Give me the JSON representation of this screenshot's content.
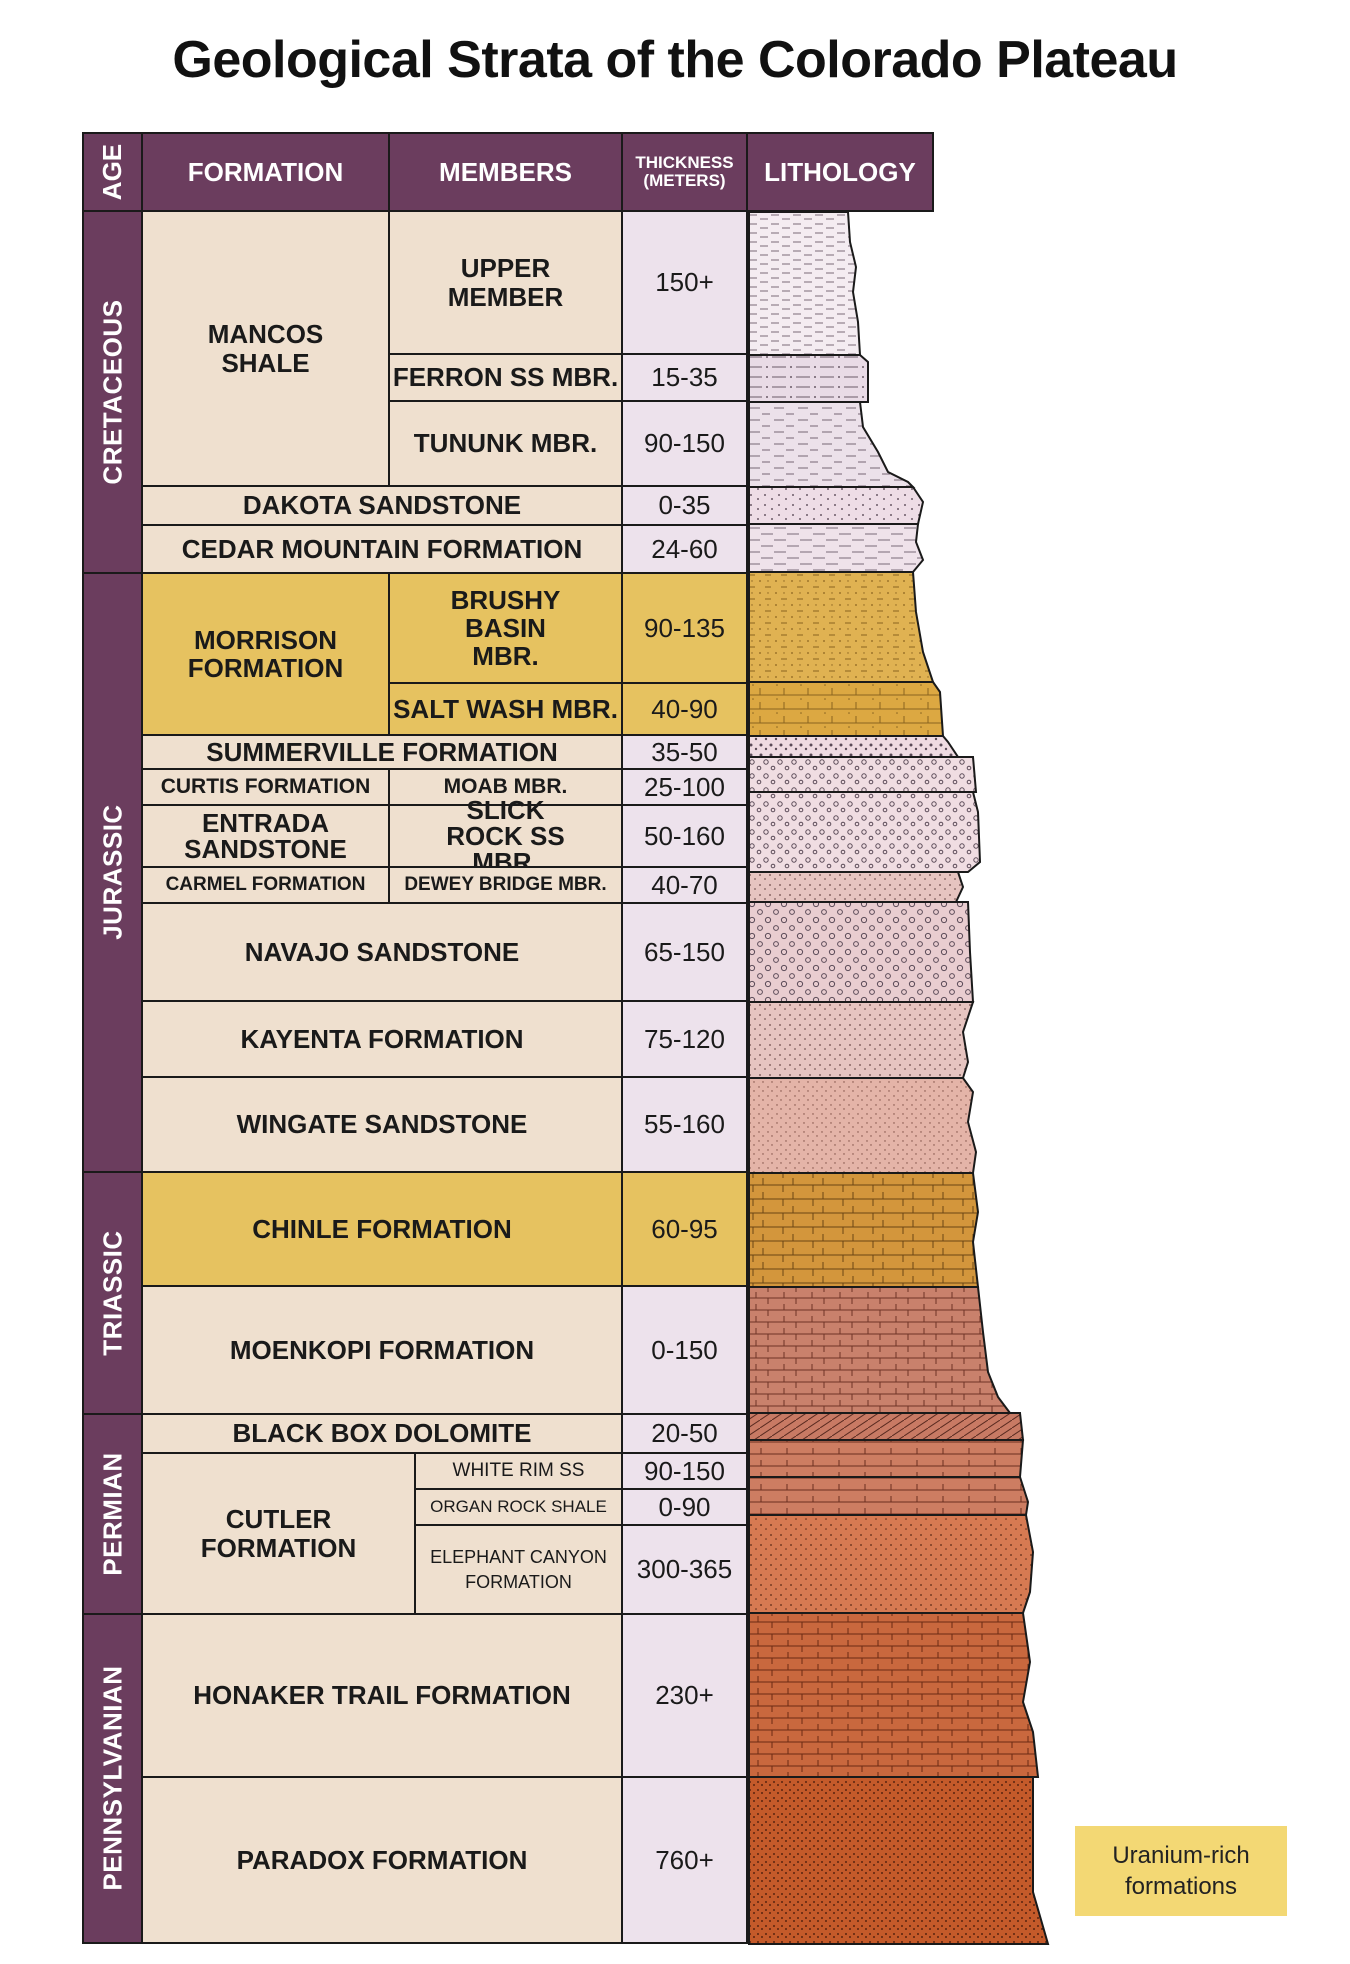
{
  "title": "Geological Strata of the Colorado Plateau",
  "headers": {
    "age": "AGE",
    "formation": "FORMATION",
    "members": "MEMBERS",
    "thickness": "THICKNESS (METERS)",
    "lithology": "LITHOLOGY"
  },
  "ages": {
    "cretaceous": "CRETACEOUS",
    "jurassic": "JURASSIC",
    "triassic": "TRIASSIC",
    "permian": "PERMIAN",
    "pennsylvanian": "PENNSYLVANIAN"
  },
  "formations": {
    "mancos": "MANCOS SHALE",
    "dakota": "DAKOTA SANDSTONE",
    "cedar": "CEDAR MOUNTAIN FORMATION",
    "morrison": "MORRISON FORMATION",
    "summerville": "SUMMERVILLE FORMATION",
    "curtis": "CURTIS FORMATION",
    "entrada": "ENTRADA SANDSTONE",
    "carmel": "CARMEL FORMATION",
    "navajo": "NAVAJO SANDSTONE",
    "kayenta": "KAYENTA FORMATION",
    "wingate": "WINGATE SANDSTONE",
    "chinle": "CHINLE FORMATION",
    "moenkopi": "MOENKOPI FORMATION",
    "blackbox": "BLACK BOX DOLOMITE",
    "cutler": "CUTLER FORMATION",
    "honaker": "HONAKER TRAIL FORMATION",
    "paradox": "PARADOX FORMATION"
  },
  "members": {
    "upper": "UPPER MEMBER",
    "ferron": "FERRON SS MBR.",
    "tununk": "TUNUNK MBR.",
    "brushy": "BRUSHY BASIN MBR.",
    "saltwash": "SALT WASH MBR.",
    "moab": "MOAB MBR.",
    "slickrock": "SLICK ROCK SS MBR.",
    "deweybridge": "DEWEY BRIDGE MBR.",
    "whiterim": "WHITE RIM SS",
    "organrock": "ORGAN ROCK SHALE",
    "elephant": "ELEPHANT CANYON FORMATION"
  },
  "thickness": {
    "upper": "150+",
    "ferron": "15-35",
    "tununk": "90-150",
    "dakota": "0-35",
    "cedar": "24-60",
    "brushy": "90-135",
    "saltwash": "40-90",
    "summerville": "35-50",
    "moab": "25-100",
    "slickrock": "50-160",
    "deweybridge": "40-70",
    "navajo": "65-150",
    "kayenta": "75-120",
    "wingate": "55-160",
    "chinle": "60-95",
    "moenkopi": "0-150",
    "blackbox": "20-50",
    "whiterim": "90-150",
    "organrock": "0-90",
    "elephant": "300-365",
    "honaker": "230+",
    "paradox": "760+"
  },
  "legend": {
    "label": "Uranium-rich formations",
    "color": "#f3d874"
  },
  "colors": {
    "header": "#6b3d5e",
    "beige": "#efe0cf",
    "uranium_gold": "#e6c260",
    "thickness": "#ede2ec"
  }
}
